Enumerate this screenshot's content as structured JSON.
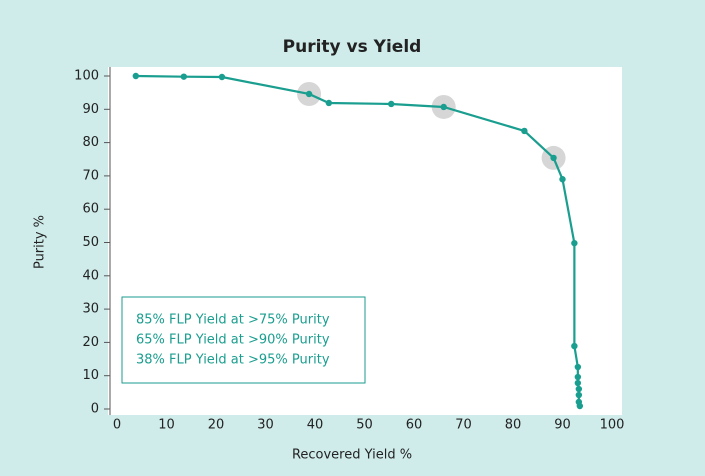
{
  "chart_data": {
    "type": "line",
    "title": "Purity vs Yield",
    "x_label": "Recovered Yield %",
    "y_label": "Purity %",
    "annotations": [
      "85% FLP Yield at >75% Purity",
      "65% FLP Yield at >90% Purity",
      "38% FLP Yield at >95% Purity"
    ],
    "series": [
      {
        "name": "Purity",
        "color": "#1a9e8f",
        "x": [
          3.8,
          13.5,
          21.2,
          38.8,
          42.8,
          55.4,
          66,
          82.3,
          88.2,
          90,
          92.4,
          92.4,
          93.1,
          93.1,
          93.1,
          93.3,
          93.3,
          93.3,
          93.5
        ],
        "values": [
          100,
          99.8,
          99.7,
          94.6,
          91.9,
          91.6,
          90.7,
          83.5,
          75.4,
          69,
          49.8,
          18.9,
          12.6,
          9.6,
          7.8,
          6,
          4.2,
          2.1,
          0.9
        ]
      }
    ],
    "highlights": {
      "color": "#cccccc",
      "x": [
        38.8,
        66,
        88.2
      ],
      "values": [
        94.6,
        90.7,
        75.4
      ]
    },
    "xlim": [
      0,
      100
    ],
    "xticks": [
      0,
      10,
      20,
      30,
      40,
      50,
      60,
      70,
      80,
      90,
      100
    ],
    "ylim": [
      0,
      100
    ],
    "yticks": [
      0,
      10,
      20,
      30,
      40,
      50,
      60,
      70,
      80,
      90,
      100
    ],
    "grid": false
  }
}
